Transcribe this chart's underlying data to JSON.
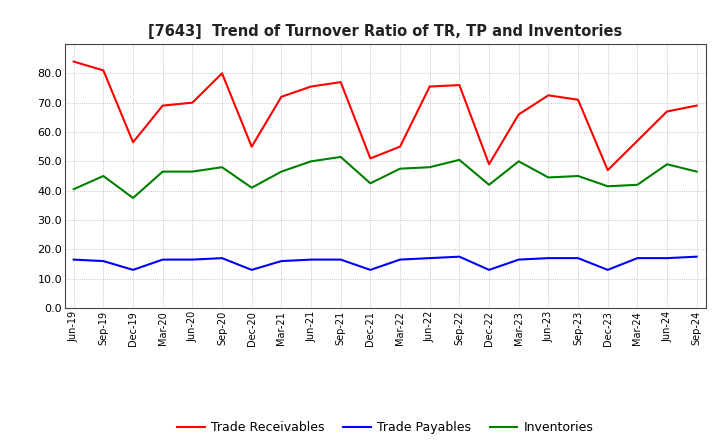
{
  "title": "[7643]  Trend of Turnover Ratio of TR, TP and Inventories",
  "x_labels": [
    "Jun-19",
    "Sep-19",
    "Dec-19",
    "Mar-20",
    "Jun-20",
    "Sep-20",
    "Dec-20",
    "Mar-21",
    "Jun-21",
    "Sep-21",
    "Dec-21",
    "Mar-22",
    "Jun-22",
    "Sep-22",
    "Dec-22",
    "Mar-23",
    "Jun-23",
    "Sep-23",
    "Dec-23",
    "Mar-24",
    "Jun-24",
    "Sep-24"
  ],
  "trade_receivables": [
    84.0,
    81.0,
    56.5,
    69.0,
    70.0,
    80.0,
    55.0,
    72.0,
    75.5,
    77.0,
    51.0,
    55.0,
    75.5,
    76.0,
    49.0,
    66.0,
    72.5,
    71.0,
    47.0,
    57.0,
    67.0,
    69.0
  ],
  "trade_payables": [
    16.5,
    16.0,
    13.0,
    16.5,
    16.5,
    17.0,
    13.0,
    16.0,
    16.5,
    16.5,
    13.0,
    16.5,
    17.0,
    17.5,
    13.0,
    16.5,
    17.0,
    17.0,
    13.0,
    17.0,
    17.0,
    17.5
  ],
  "inventories": [
    40.5,
    45.0,
    37.5,
    46.5,
    46.5,
    48.0,
    41.0,
    46.5,
    50.0,
    51.5,
    42.5,
    47.5,
    48.0,
    50.5,
    42.0,
    50.0,
    44.5,
    45.0,
    41.5,
    42.0,
    49.0,
    46.5
  ],
  "tr_color": "#ff0000",
  "tp_color": "#0000ff",
  "inv_color": "#008000",
  "ylim": [
    0.0,
    90.0
  ],
  "yticks": [
    0.0,
    10.0,
    20.0,
    30.0,
    40.0,
    50.0,
    60.0,
    70.0,
    80.0
  ],
  "bg_color": "#ffffff",
  "grid_color": "#999999",
  "legend_labels": [
    "Trade Receivables",
    "Trade Payables",
    "Inventories"
  ]
}
